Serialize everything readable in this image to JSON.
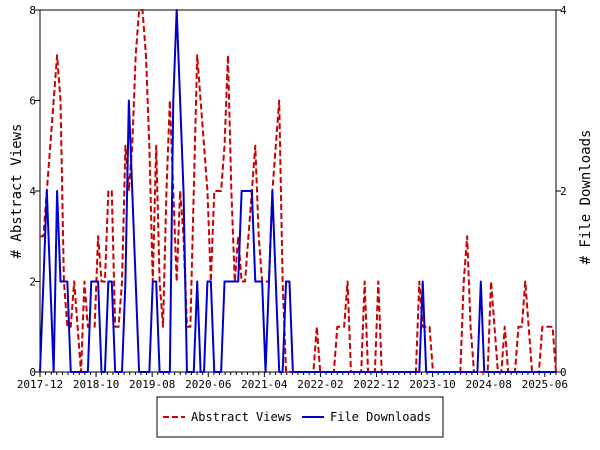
{
  "chart_data": {
    "type": "line",
    "title": "",
    "xlabel": "",
    "ylabel_left": "# Abstract Views",
    "ylabel_right": "# File Downloads",
    "x_start": "2017-12",
    "x_end": "2025-08",
    "x_tick_labels": [
      "2017-12",
      "2018-10",
      "2019-08",
      "2020-06",
      "2021-04",
      "2022-02",
      "2022-12",
      "2023-10",
      "2024-08",
      "2025-06"
    ],
    "ylim_left": [
      0,
      8
    ],
    "ylim_right": [
      0,
      4
    ],
    "y_ticks_left": [
      "0",
      "2",
      "4",
      "6",
      "8"
    ],
    "y_ticks_right": [
      "0",
      "2",
      "4"
    ],
    "grid": false,
    "legend_position": "bottom-center",
    "series": [
      {
        "name": "Abstract Views",
        "axis": "left",
        "color": "#cc0000",
        "dash": true,
        "values": [
          3,
          3,
          4,
          5,
          6,
          7,
          6,
          2,
          1,
          1,
          2,
          1,
          0,
          2,
          1,
          1,
          1,
          3,
          2,
          2,
          4,
          4,
          1,
          1,
          2,
          5,
          4,
          5,
          7,
          8,
          8,
          7,
          5,
          2,
          5,
          2,
          1,
          4,
          6,
          4,
          2,
          4,
          3,
          1,
          1,
          4,
          7,
          6,
          5,
          4,
          2,
          4,
          4,
          4,
          5,
          7,
          4,
          2,
          3,
          2,
          2,
          3,
          4,
          5,
          3,
          2,
          2,
          2,
          4,
          5,
          6,
          2,
          0,
          0,
          0,
          0,
          0,
          0,
          0,
          0,
          0,
          1,
          0,
          0,
          0,
          0,
          0,
          1,
          1,
          1,
          2,
          0,
          0,
          0,
          0,
          2,
          0,
          0,
          0,
          2,
          0,
          0,
          0,
          0,
          0,
          0,
          0,
          0,
          0,
          0,
          0,
          2,
          1,
          1,
          1,
          0,
          0,
          0,
          0,
          0,
          0,
          0,
          0,
          0,
          2,
          3,
          1,
          0,
          0,
          0,
          0,
          0,
          2,
          1,
          0,
          0,
          1,
          0,
          0,
          0,
          1,
          1,
          2,
          1,
          0,
          0,
          0,
          1,
          1,
          1,
          1,
          0
        ]
      },
      {
        "name": "File Downloads",
        "axis": "right",
        "color": "#0000cc",
        "dash": false,
        "values": [
          0,
          1,
          2,
          1,
          0,
          2,
          1,
          1,
          1,
          0,
          0,
          0,
          0,
          0,
          0,
          1,
          1,
          1,
          0,
          0,
          1,
          1,
          0,
          0,
          0,
          1,
          3,
          2,
          1,
          0,
          0,
          0,
          0,
          1,
          1,
          0,
          0,
          0,
          0,
          3,
          4,
          3,
          2,
          0,
          0,
          0,
          1,
          0,
          0,
          1,
          1,
          0,
          0,
          0,
          1,
          1,
          1,
          1,
          1,
          2,
          2,
          2,
          2,
          1,
          1,
          1,
          0,
          1,
          2,
          1,
          0,
          0,
          1,
          1,
          0,
          0,
          0,
          0,
          0,
          0,
          0,
          0,
          0,
          0,
          0,
          0,
          0,
          0,
          0,
          0,
          0,
          0,
          0,
          0,
          0,
          0,
          0,
          0,
          0,
          0,
          0,
          0,
          0,
          0,
          0,
          0,
          0,
          0,
          0,
          0,
          0,
          0,
          1,
          0,
          0,
          0,
          0,
          0,
          0,
          0,
          0,
          0,
          0,
          0,
          0,
          0,
          0,
          0,
          0,
          1,
          0,
          0,
          0,
          0,
          0,
          0,
          0,
          0,
          0,
          0,
          0,
          0,
          0,
          0,
          0,
          0,
          0,
          0,
          0,
          0,
          0,
          0
        ]
      }
    ]
  }
}
